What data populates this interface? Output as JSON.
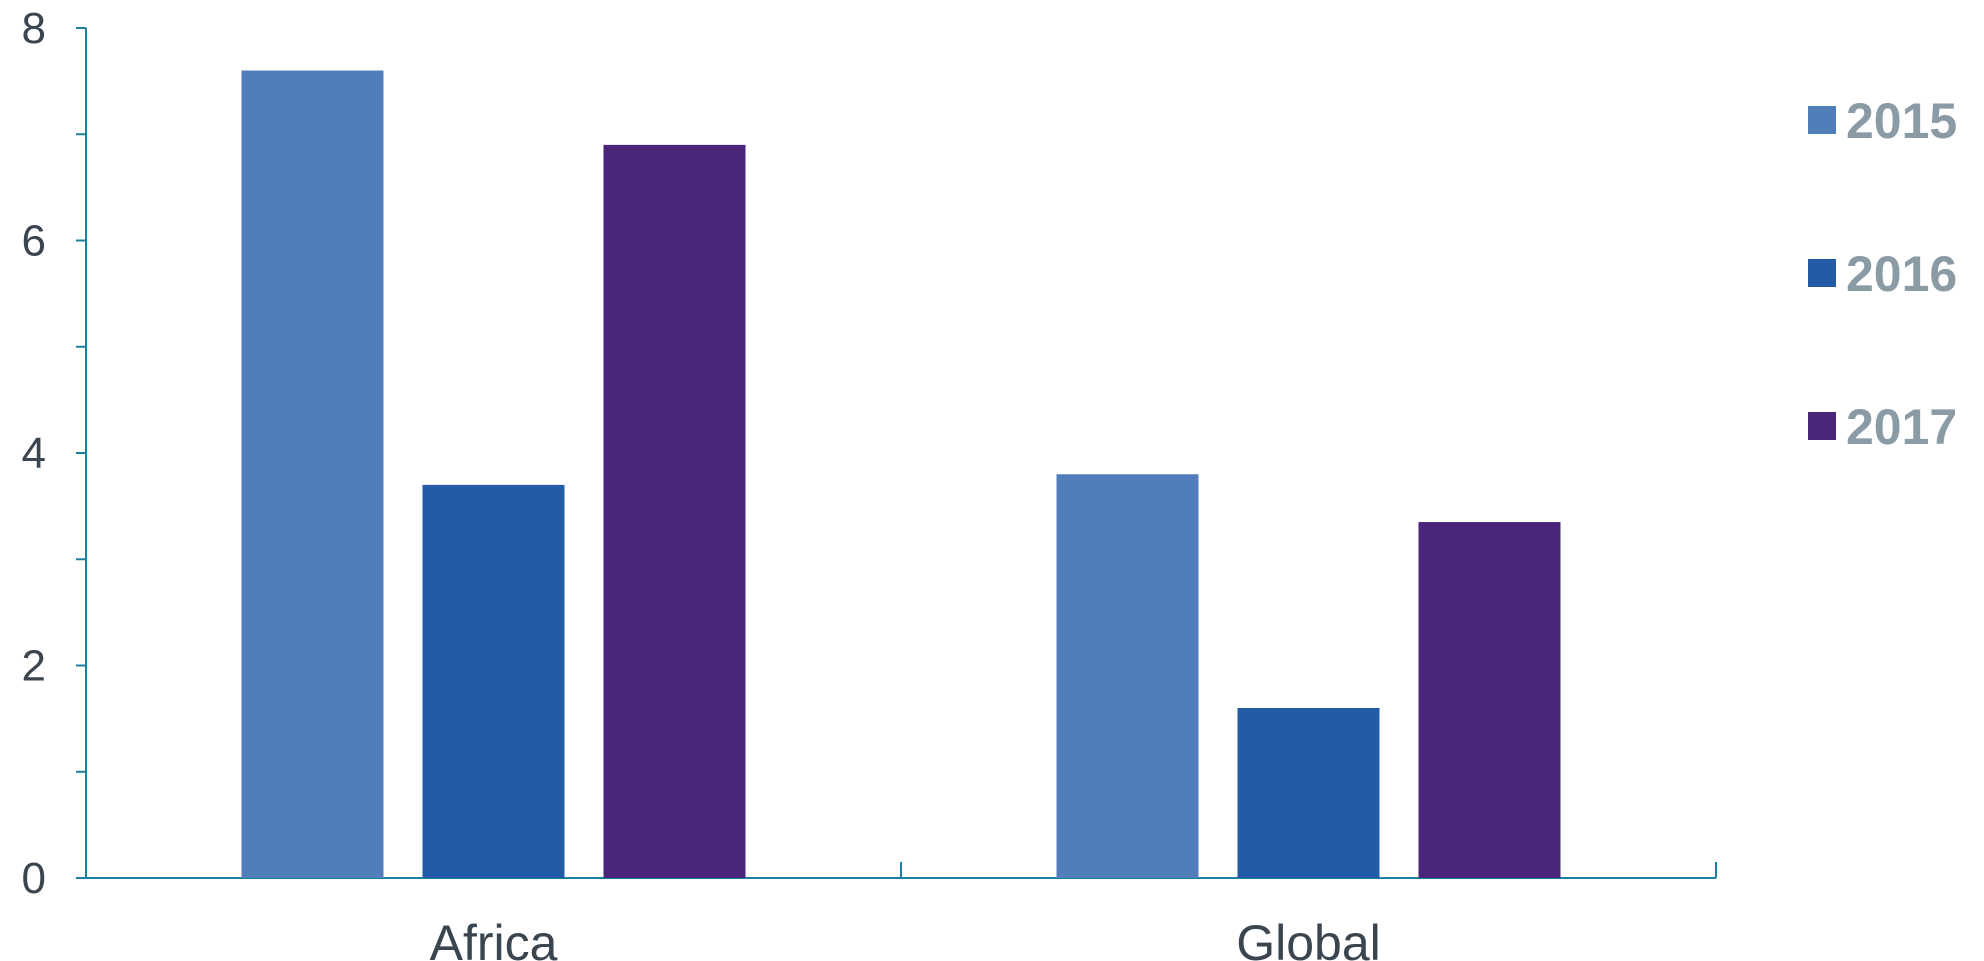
{
  "chart_data": {
    "type": "bar",
    "categories": [
      "Africa",
      "Global"
    ],
    "series": [
      {
        "name": "2015",
        "values": [
          7.6,
          3.8
        ],
        "color": "#517dbb"
      },
      {
        "name": "2016",
        "values": [
          3.7,
          1.6
        ],
        "color": "#235ba7"
      },
      {
        "name": "2017",
        "values": [
          6.9,
          3.35
        ],
        "color": "#4a267a"
      }
    ],
    "title": "",
    "xlabel": "",
    "ylabel": "",
    "ylim": [
      0,
      8
    ],
    "yticks": [
      "0",
      "2",
      "4",
      "6",
      "8"
    ],
    "grid": false,
    "legend_position": "right",
    "axis_color": "#1f7fa0"
  }
}
